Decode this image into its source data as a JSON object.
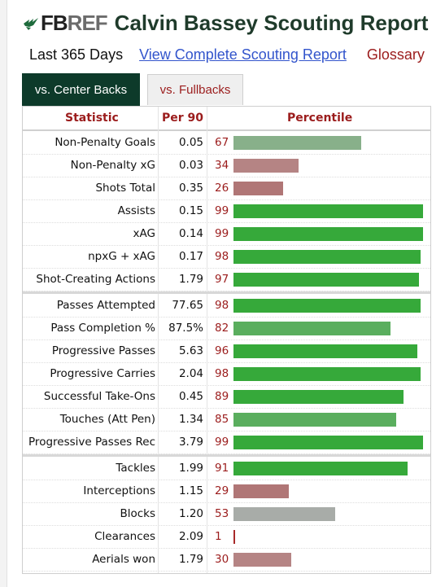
{
  "brand": {
    "fb": "FB",
    "ref": "REF",
    "mark_icon": "fbref-bird-icon"
  },
  "title": "Calvin Bassey Scouting Report",
  "subnav": {
    "last_days": "Last 365 Days",
    "complete_link": "View Complete Scouting Report",
    "glossary": "Glossary"
  },
  "tabs": [
    {
      "label": "vs. Center Backs",
      "active": true
    },
    {
      "label": "vs. Fullbacks",
      "active": false
    }
  ],
  "columns": {
    "statistic": "Statistic",
    "per90": "Per 90",
    "percentile": "Percentile"
  },
  "colors": {
    "high": "#36a93a",
    "mid_high": "#5aae5e",
    "mid": "#88b08a",
    "neutral": "#a8aca8",
    "low": "#b58484",
    "very_low": "#b07676",
    "min": "#a82a2a"
  },
  "groups": [
    {
      "rows": [
        {
          "stat": "Non-Penalty Goals",
          "per90": "0.05",
          "pct": "67"
        },
        {
          "stat": "Non-Penalty xG",
          "per90": "0.03",
          "pct": "34"
        },
        {
          "stat": "Shots Total",
          "per90": "0.35",
          "pct": "26"
        },
        {
          "stat": "Assists",
          "per90": "0.15",
          "pct": "99"
        },
        {
          "stat": "xAG",
          "per90": "0.14",
          "pct": "99"
        },
        {
          "stat": "npxG + xAG",
          "per90": "0.17",
          "pct": "98"
        },
        {
          "stat": "Shot-Creating Actions",
          "per90": "1.79",
          "pct": "97"
        }
      ]
    },
    {
      "rows": [
        {
          "stat": "Passes Attempted",
          "per90": "77.65",
          "pct": "98"
        },
        {
          "stat": "Pass Completion %",
          "per90": "87.5%",
          "pct": "82"
        },
        {
          "stat": "Progressive Passes",
          "per90": "5.63",
          "pct": "96"
        },
        {
          "stat": "Progressive Carries",
          "per90": "2.04",
          "pct": "98"
        },
        {
          "stat": "Successful Take-Ons",
          "per90": "0.45",
          "pct": "89"
        },
        {
          "stat": "Touches (Att Pen)",
          "per90": "1.34",
          "pct": "85"
        },
        {
          "stat": "Progressive Passes Rec",
          "per90": "3.79",
          "pct": "99"
        }
      ]
    },
    {
      "rows": [
        {
          "stat": "Tackles",
          "per90": "1.99",
          "pct": "91"
        },
        {
          "stat": "Interceptions",
          "per90": "1.15",
          "pct": "29"
        },
        {
          "stat": "Blocks",
          "per90": "1.20",
          "pct": "53"
        },
        {
          "stat": "Clearances",
          "per90": "2.09",
          "pct": "1"
        },
        {
          "stat": "Aerials won",
          "per90": "1.79",
          "pct": "30"
        }
      ]
    }
  ]
}
